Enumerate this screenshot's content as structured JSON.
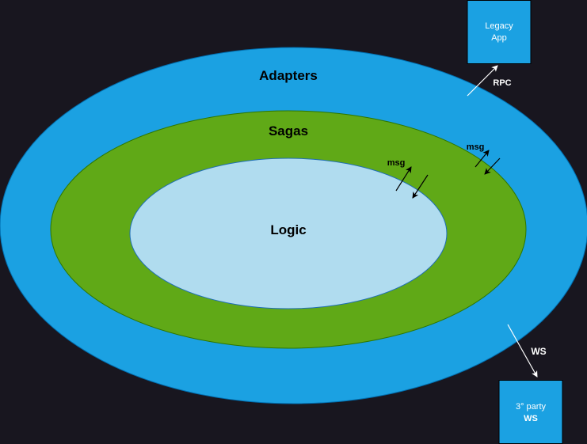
{
  "colors": {
    "background": "#18161f",
    "adapters_fill": "#1ba1e2",
    "adapters_stroke": "#006eaf",
    "sagas_fill": "#60a917",
    "sagas_stroke": "#2d7600",
    "logic_fill": "#b0dcef",
    "logic_stroke": "#1f6eb4",
    "box_fill": "#1ba1e2",
    "arrow_light": "#ffffff",
    "arrow_dark": "#000000",
    "text_dark": "#000000",
    "text_light": "#ffffff"
  },
  "layers": {
    "adapters": "Adapters",
    "sagas": "Sagas",
    "logic": "Logic"
  },
  "messages": {
    "inner": "msg",
    "outer": "msg"
  },
  "external": {
    "legacy_line1": "Legacy",
    "legacy_line2": "App",
    "rpc": "RPC",
    "ws": "WS",
    "thirdparty_line1": "3° party",
    "thirdparty_line2": "WS"
  }
}
